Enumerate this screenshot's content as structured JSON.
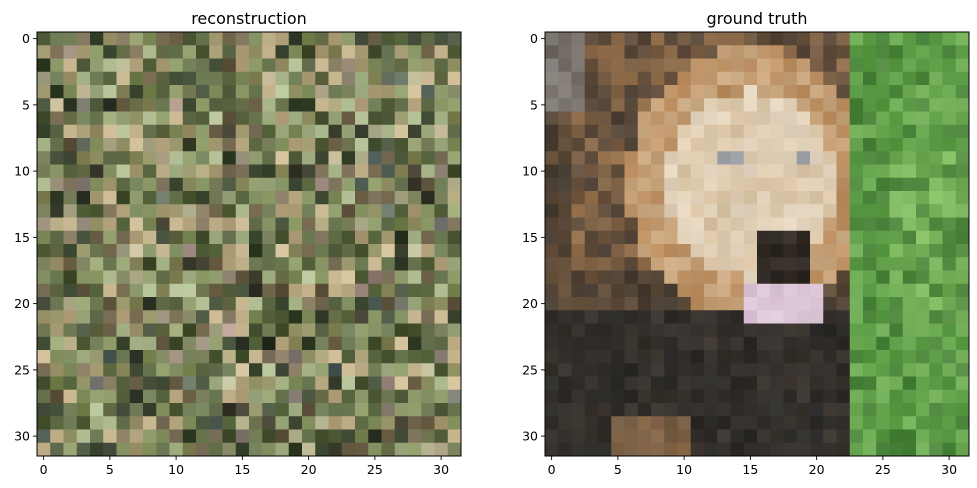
{
  "chart_data": [
    {
      "type": "heatmap",
      "title": "reconstruction",
      "xlabel": "",
      "ylabel": "",
      "xlim": [
        -0.5,
        31.5
      ],
      "ylim": [
        31.5,
        -0.5
      ],
      "xticks": [
        0,
        5,
        10,
        15,
        20,
        25,
        30
      ],
      "yticks": [
        0,
        5,
        10,
        15,
        20,
        25,
        30
      ],
      "grid": false,
      "image_description": "32x32 RGB pixel mosaic of noisy olive, khaki, green and brown tones",
      "palette": [
        "#6f7550",
        "#8a8a5e",
        "#5f6b45",
        "#a39a72",
        "#7d8c58",
        "#4e5a3a",
        "#b3a47e",
        "#8f9a6a",
        "#6a5f48",
        "#9aa77a",
        "#57623f",
        "#c2b08a",
        "#3f4a34",
        "#7a6e55",
        "#a9b58a",
        "#65744d"
      ]
    },
    {
      "type": "heatmap",
      "title": "ground truth",
      "xlabel": "",
      "ylabel": "",
      "xlim": [
        -0.5,
        31.5
      ],
      "ylim": [
        31.5,
        -0.5
      ],
      "xticks": [
        0,
        5,
        10,
        15,
        20,
        25,
        30
      ],
      "yticks": [
        0,
        5,
        10,
        15,
        20,
        25,
        30
      ],
      "grid": false,
      "image_description": "32x32 RGB pixel image of a lion face with pink tongue on green grass background",
      "colors": {
        "mane": "#b8895a",
        "face": "#d9c3a4",
        "face_light": "#e8dccb",
        "eye": "#8a8f94",
        "nose": "#2a2520",
        "tongue": "#d9c2d4",
        "dark_body": "#2b2a28",
        "shadow": "#4a3e34",
        "grass": "#5a9a45",
        "grass_light": "#8cc46a",
        "grass_dark": "#3a7030",
        "gray_corner": "#8a8580"
      }
    }
  ]
}
